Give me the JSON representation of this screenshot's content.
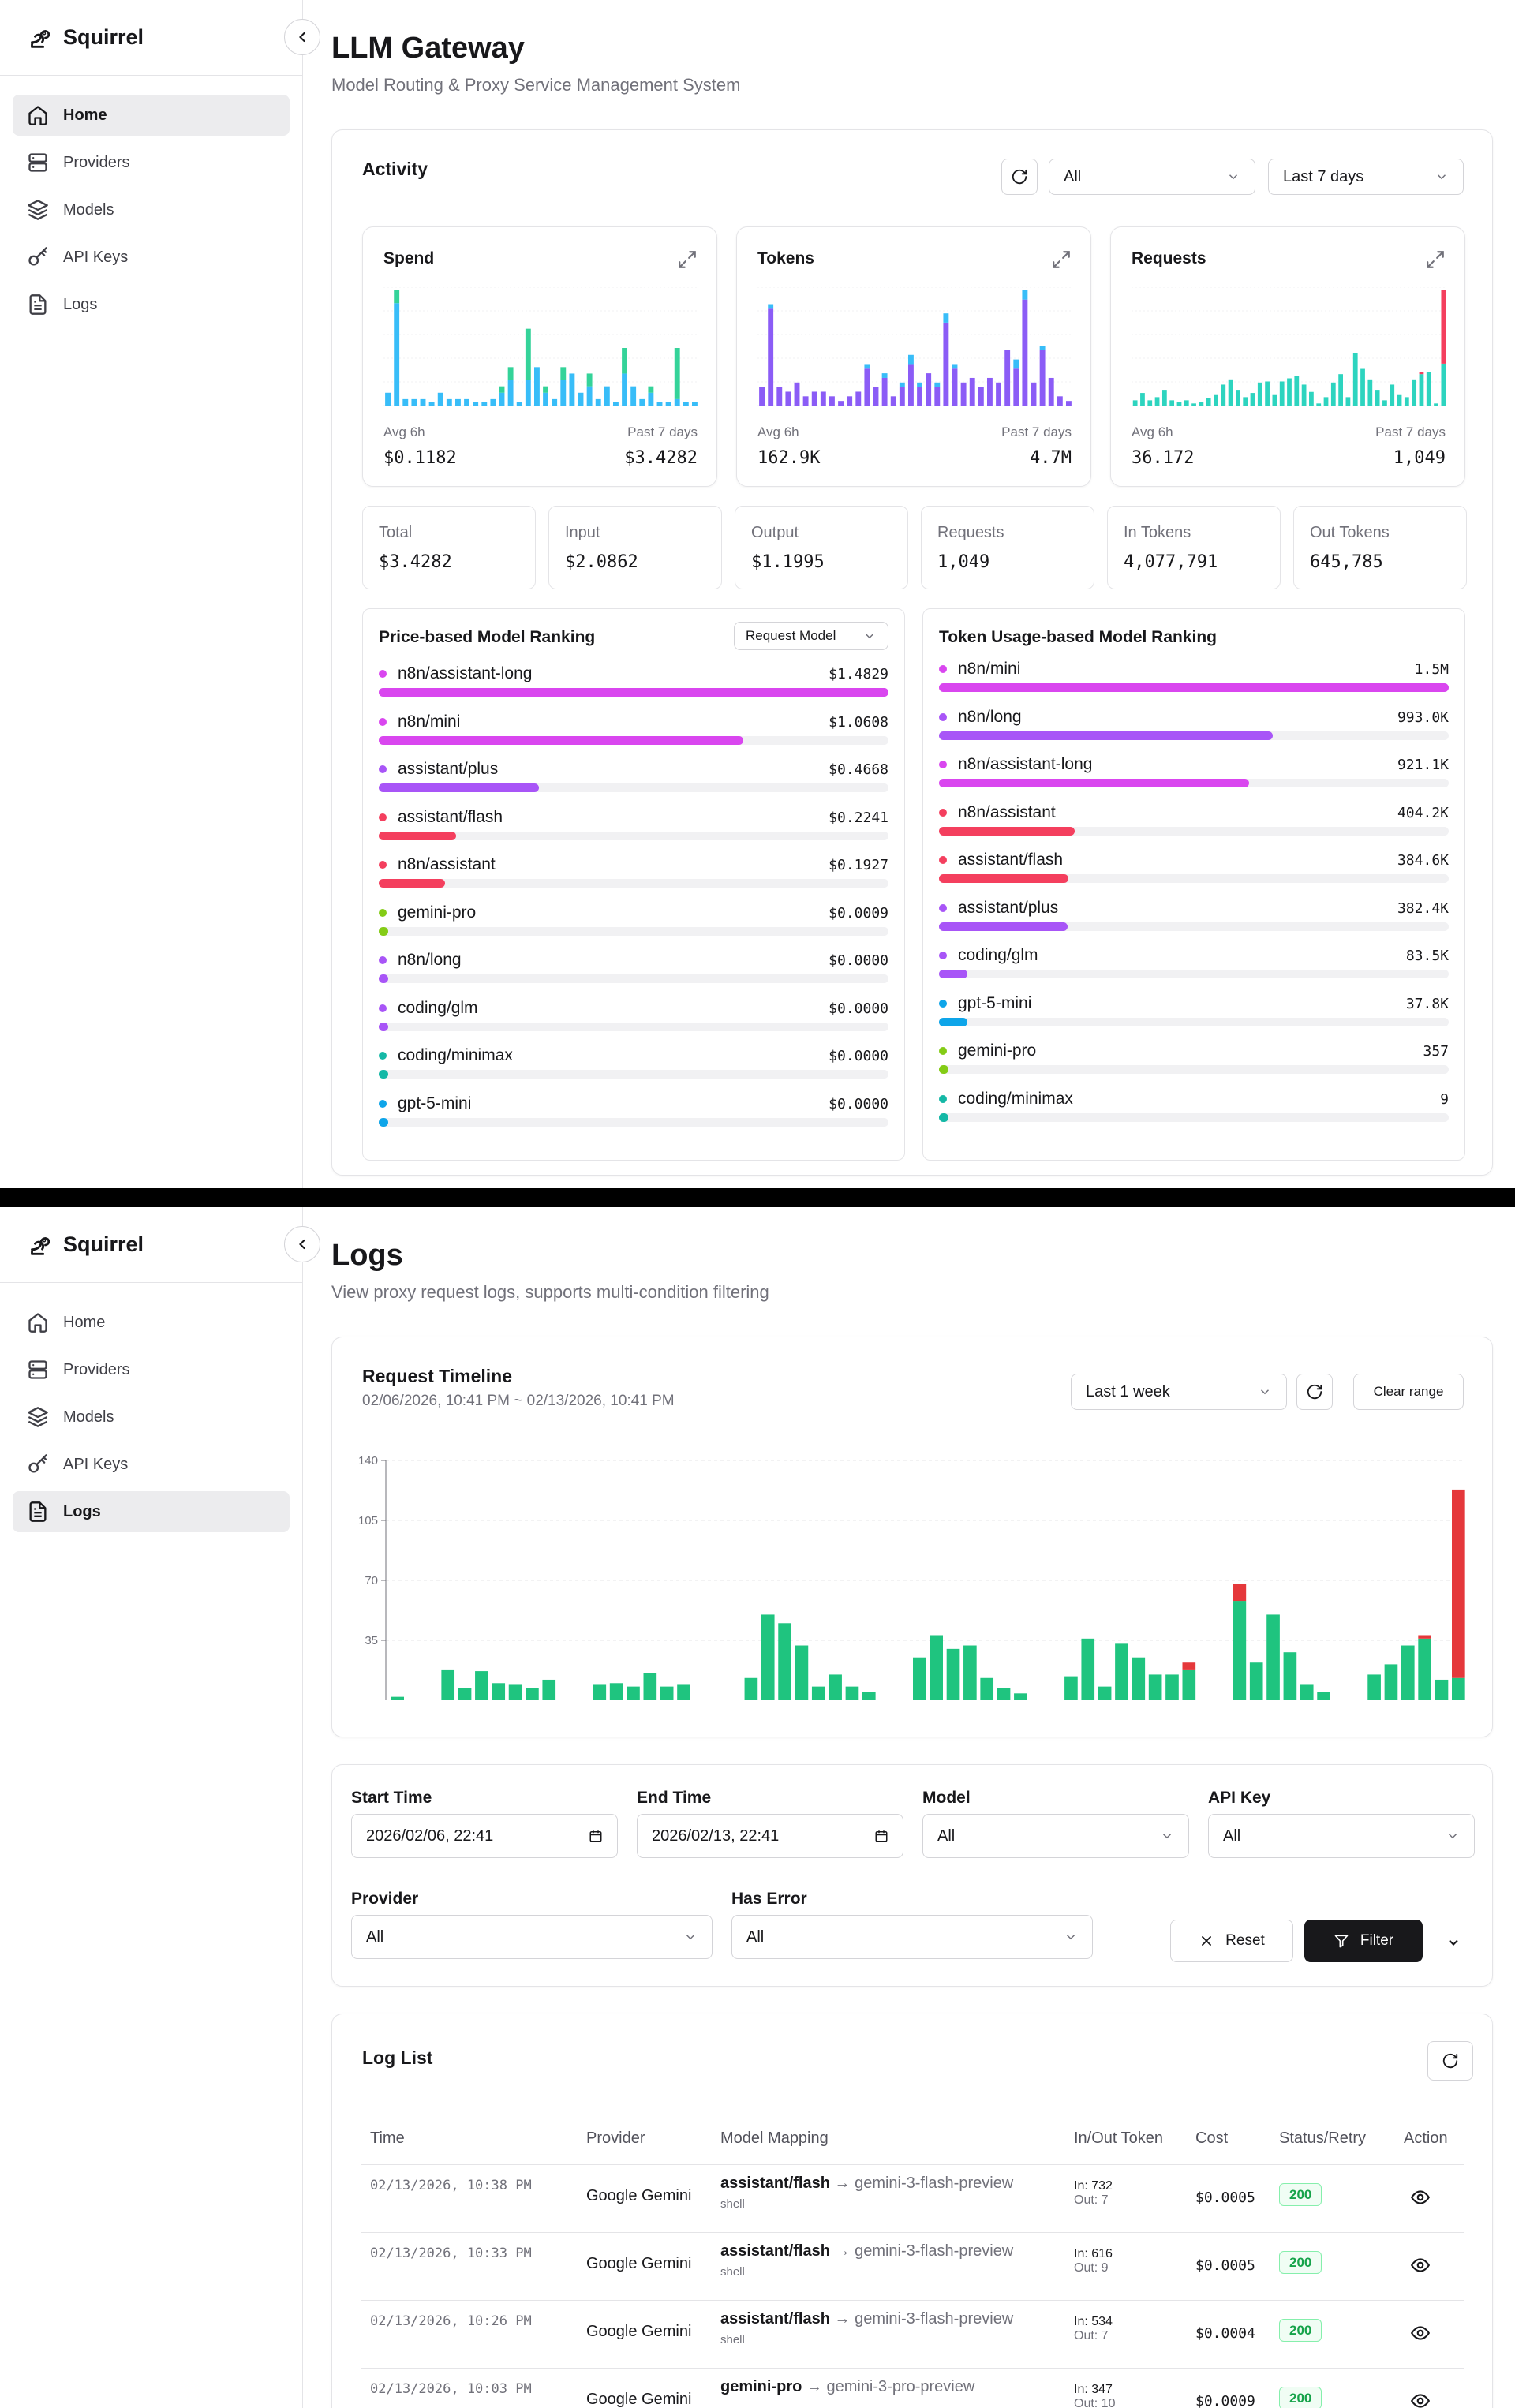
{
  "brand": {
    "name": "Squirrel"
  },
  "nav": [
    {
      "label": "Home",
      "icon": "home-icon"
    },
    {
      "label": "Providers",
      "icon": "server-icon"
    },
    {
      "label": "Models",
      "icon": "layers-icon"
    },
    {
      "label": "API Keys",
      "icon": "key-icon"
    },
    {
      "label": "Logs",
      "icon": "file-text-icon"
    }
  ],
  "dashboard": {
    "title": "LLM Gateway",
    "subtitle": "Model Routing & Proxy Service Management System",
    "activity": {
      "title": "Activity",
      "filter_value": "All",
      "range_value": "Last 7 days",
      "cards": [
        {
          "title": "Spend",
          "avg_label": "Avg 6h",
          "past_label": "Past 7 days",
          "avg_value": "$0.1182",
          "past_value": "$3.4282"
        },
        {
          "title": "Tokens",
          "avg_label": "Avg 6h",
          "past_label": "Past 7 days",
          "avg_value": "162.9K",
          "past_value": "4.7M"
        },
        {
          "title": "Requests",
          "avg_label": "Avg 6h",
          "past_label": "Past 7 days",
          "avg_value": "36.172",
          "past_value": "1,049"
        }
      ],
      "stats": [
        {
          "label": "Total",
          "value": "$3.4282"
        },
        {
          "label": "Input",
          "value": "$2.0862"
        },
        {
          "label": "Output",
          "value": "$1.1995"
        },
        {
          "label": "Requests",
          "value": "1,049"
        },
        {
          "label": "In Tokens",
          "value": "4,077,791"
        },
        {
          "label": "Out Tokens",
          "value": "645,785"
        }
      ],
      "price_ranking": {
        "title": "Price-based Model Ranking",
        "sort_label": "Request Model",
        "items": [
          {
            "name": "n8n/assistant-long",
            "value": "$1.4829",
            "fraction": 1.0,
            "color": "#d946ef"
          },
          {
            "name": "n8n/mini",
            "value": "$1.0608",
            "fraction": 0.715,
            "color": "#d946ef"
          },
          {
            "name": "assistant/plus",
            "value": "$0.4668",
            "fraction": 0.315,
            "color": "#a855f7"
          },
          {
            "name": "assistant/flash",
            "value": "$0.2241",
            "fraction": 0.151,
            "color": "#f43f5e"
          },
          {
            "name": "n8n/assistant",
            "value": "$0.1927",
            "fraction": 0.13,
            "color": "#f43f5e"
          },
          {
            "name": "gemini-pro",
            "value": "$0.0009",
            "fraction": 0.0,
            "color": "#84cc16"
          },
          {
            "name": "n8n/long",
            "value": "$0.0000",
            "fraction": 0.0,
            "color": "#a855f7"
          },
          {
            "name": "coding/glm",
            "value": "$0.0000",
            "fraction": 0.0,
            "color": "#a855f7"
          },
          {
            "name": "coding/minimax",
            "value": "$0.0000",
            "fraction": 0.0,
            "color": "#14b8a6"
          },
          {
            "name": "gpt-5-mini",
            "value": "$0.0000",
            "fraction": 0.0,
            "color": "#0ea5e9"
          }
        ]
      },
      "token_ranking": {
        "title": "Token Usage-based Model Ranking",
        "items": [
          {
            "name": "n8n/mini",
            "value": "1.5M",
            "fraction": 1.0,
            "color": "#d946ef"
          },
          {
            "name": "n8n/long",
            "value": "993.0K",
            "fraction": 0.655,
            "color": "#a855f7"
          },
          {
            "name": "n8n/assistant-long",
            "value": "921.1K",
            "fraction": 0.608,
            "color": "#d946ef"
          },
          {
            "name": "n8n/assistant",
            "value": "404.2K",
            "fraction": 0.267,
            "color": "#f43f5e"
          },
          {
            "name": "assistant/flash",
            "value": "384.6K",
            "fraction": 0.254,
            "color": "#f43f5e"
          },
          {
            "name": "assistant/plus",
            "value": "382.4K",
            "fraction": 0.252,
            "color": "#a855f7"
          },
          {
            "name": "coding/glm",
            "value": "83.5K",
            "fraction": 0.055,
            "color": "#a855f7"
          },
          {
            "name": "gpt-5-mini",
            "value": "37.8K",
            "fraction": 0.025,
            "color": "#0ea5e9"
          },
          {
            "name": "gemini-pro",
            "value": "357",
            "fraction": 0.0,
            "color": "#84cc16"
          },
          {
            "name": "coding/minimax",
            "value": "9",
            "fraction": 0.0,
            "color": "#14b8a6"
          }
        ]
      }
    }
  },
  "logs": {
    "title": "Logs",
    "subtitle": "View proxy request logs, supports multi-condition filtering",
    "timeline": {
      "title": "Request Timeline",
      "range_text": "02/06/2026, 10:41 PM ~ 02/13/2026, 10:41 PM",
      "range_select": "Last 1 week",
      "clear_label": "Clear range"
    },
    "filters": {
      "start_label": "Start Time",
      "start_value": "2026/02/06, 22:41",
      "end_label": "End Time",
      "end_value": "2026/02/13, 22:41",
      "model_label": "Model",
      "model_value": "All",
      "apikey_label": "API Key",
      "apikey_value": "All",
      "provider_label": "Provider",
      "provider_value": "All",
      "error_label": "Has Error",
      "error_value": "All",
      "reset_label": "Reset",
      "filter_label": "Filter"
    },
    "list": {
      "title": "Log List",
      "columns": [
        "Time",
        "Provider",
        "Model Mapping",
        "In/Out Token",
        "Cost",
        "Status/Retry",
        "Action"
      ],
      "rows": [
        {
          "time": "02/13/2026, 10:38 PM",
          "provider": "Google Gemini",
          "model": "assistant/flash",
          "arrow": "→",
          "target": "gemini-3-flash-preview",
          "tag": "shell",
          "in": "In: 732",
          "out": "Out: 7",
          "cost": "$0.0005",
          "status": "200"
        },
        {
          "time": "02/13/2026, 10:33 PM",
          "provider": "Google Gemini",
          "model": "assistant/flash",
          "arrow": "→",
          "target": "gemini-3-flash-preview",
          "tag": "shell",
          "in": "In: 616",
          "out": "Out: 9",
          "cost": "$0.0005",
          "status": "200"
        },
        {
          "time": "02/13/2026, 10:26 PM",
          "provider": "Google Gemini",
          "model": "assistant/flash",
          "arrow": "→",
          "target": "gemini-3-flash-preview",
          "tag": "shell",
          "in": "In: 534",
          "out": "Out: 7",
          "cost": "$0.0004",
          "status": "200"
        },
        {
          "time": "02/13/2026, 10:03 PM",
          "provider": "Google Gemini",
          "model": "gemini-pro",
          "arrow": "→",
          "target": "gemini-3-pro-preview",
          "tag": "",
          "in": "In: 347",
          "out": "Out: 10",
          "cost": "$0.0009",
          "status": "200"
        }
      ]
    }
  },
  "chart_data": [
    {
      "type": "bar",
      "title": "Spend",
      "series": [
        {
          "values": [
            0.02,
            0.16,
            0.01,
            0.01,
            0.01,
            0.005,
            0.02,
            0.01,
            0.01,
            0.01,
            0.005,
            0.005,
            0.01,
            0.02,
            0.04,
            0.005,
            0.04,
            0.06,
            0.02,
            0.01,
            0.04,
            0.05,
            0.02,
            0.03,
            0.01,
            0.03,
            0.005,
            0.05,
            0.03,
            0.01,
            0.02,
            0.005,
            0.005,
            0.01,
            0.005,
            0.005
          ]
        },
        {
          "values": [
            0.0,
            0.02,
            0.0,
            0.0,
            0.0,
            0.0,
            0.0,
            0.0,
            0.0,
            0.0,
            0.0,
            0.0,
            0.0,
            0.01,
            0.02,
            0.0,
            0.08,
            0.0,
            0.01,
            0.0,
            0.02,
            0.0,
            0.0,
            0.02,
            0.0,
            0.0,
            0.0,
            0.04,
            0.0,
            0.0,
            0.01,
            0.0,
            0.0,
            0.08,
            0.0,
            0.0
          ]
        }
      ]
    },
    {
      "type": "bar",
      "title": "Tokens",
      "series": [
        {
          "values": [
            0.04,
            0.21,
            0.04,
            0.03,
            0.05,
            0.02,
            0.03,
            0.03,
            0.02,
            0.01,
            0.02,
            0.03,
            0.08,
            0.04,
            0.06,
            0.02,
            0.04,
            0.09,
            0.04,
            0.07,
            0.04,
            0.18,
            0.08,
            0.05,
            0.06,
            0.04,
            0.06,
            0.05,
            0.12,
            0.08,
            0.23,
            0.05,
            0.12,
            0.06,
            0.02,
            0.01
          ]
        },
        {
          "values": [
            0.0,
            0.01,
            0.0,
            0.0,
            0.0,
            0.0,
            0.0,
            0.0,
            0.0,
            0.0,
            0.0,
            0.0,
            0.01,
            0.0,
            0.01,
            0.0,
            0.01,
            0.02,
            0.01,
            0.0,
            0.01,
            0.02,
            0.01,
            0.0,
            0.0,
            0.0,
            0.0,
            0.0,
            0.0,
            0.02,
            0.02,
            0.0,
            0.01,
            0.0,
            0.0,
            0.0
          ]
        }
      ]
    },
    {
      "type": "bar",
      "title": "Requests",
      "series": [
        {
          "values": [
            5,
            12,
            5,
            8,
            15,
            5,
            3,
            5,
            2,
            3,
            7,
            10,
            20,
            25,
            15,
            8,
            12,
            22,
            23,
            10,
            23,
            26,
            28,
            20,
            13,
            2,
            8,
            22,
            30,
            8,
            50,
            35,
            25,
            15,
            5,
            20,
            10,
            8,
            25,
            30,
            32,
            2,
            40
          ]
        },
        {
          "values": [
            0,
            0,
            0,
            0,
            0,
            0,
            0,
            0,
            0,
            0,
            0,
            0,
            0,
            0,
            0,
            0,
            0,
            0,
            0,
            0,
            0,
            0,
            0,
            0,
            0,
            0,
            0,
            0,
            0,
            0,
            0,
            0,
            0,
            0,
            0,
            0,
            0,
            0,
            0,
            2,
            0,
            0,
            70
          ]
        }
      ]
    },
    {
      "type": "bar",
      "title": "Request Timeline",
      "ylim": [
        0,
        140
      ],
      "yticks": [
        35,
        70,
        105,
        140
      ],
      "series": [
        {
          "values": [
            2,
            0,
            0,
            18,
            7,
            17,
            10,
            9,
            7,
            12,
            0,
            0,
            9,
            10,
            8,
            16,
            8,
            9,
            0,
            0,
            0,
            13,
            50,
            45,
            32,
            8,
            15,
            8,
            5,
            0,
            0,
            25,
            38,
            30,
            32,
            13,
            7,
            4,
            0,
            0,
            14,
            36,
            8,
            33,
            25,
            15,
            15,
            18,
            0,
            0,
            58,
            22,
            50,
            28,
            9,
            5,
            0,
            0,
            15,
            21,
            32,
            36,
            12,
            13
          ]
        },
        {
          "values": [
            0,
            0,
            0,
            0,
            0,
            0,
            0,
            0,
            0,
            0,
            0,
            0,
            0,
            0,
            0,
            0,
            0,
            0,
            0,
            0,
            0,
            0,
            0,
            0,
            0,
            0,
            0,
            0,
            0,
            0,
            0,
            0,
            0,
            0,
            0,
            0,
            0,
            0,
            0,
            0,
            0,
            0,
            0,
            0,
            0,
            0,
            0,
            4,
            0,
            0,
            10,
            0,
            0,
            0,
            0,
            0,
            0,
            0,
            0,
            0,
            0,
            2,
            0,
            110
          ]
        }
      ]
    }
  ]
}
